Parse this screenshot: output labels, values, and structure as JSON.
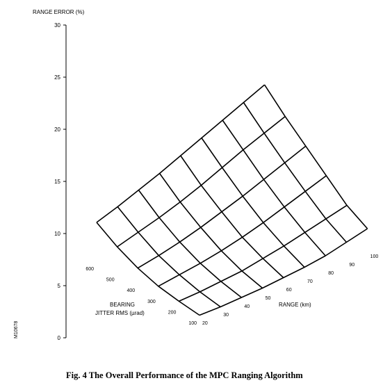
{
  "chart_data": {
    "type": "surface-mesh",
    "title": "",
    "zlabel": "RANGE ERROR (%)",
    "z_ticks": [
      "0",
      "5",
      "10",
      "15",
      "20",
      "25",
      "30"
    ],
    "zlim": [
      0,
      30
    ],
    "bearing_axis": {
      "label_line1": "BEARING",
      "label_line2": "JITTER RMS (µrad)",
      "values": [
        100,
        200,
        300,
        400,
        500,
        600
      ]
    },
    "range_axis": {
      "label": "RANGE (km)",
      "values": [
        20,
        30,
        40,
        50,
        60,
        70,
        80,
        90,
        100
      ]
    },
    "series": [
      {
        "name": "600",
        "values": [
          7.6,
          11.5,
          15.0,
          18.7,
          23.0,
          26.8
        ]
      },
      {
        "name": "500",
        "values": [
          6.2,
          9.6,
          12.9,
          16.2,
          19.8,
          23.5
        ]
      },
      {
        "name": "400",
        "values": [
          5.1,
          7.9,
          10.8,
          13.8,
          17.0,
          20.3
        ]
      },
      {
        "name": "300",
        "values": [
          4.1,
          6.2,
          8.8,
          11.4,
          14.1,
          17.0
        ]
      },
      {
        "name": "200",
        "values": [
          3.0,
          4.7,
          6.8,
          9.1,
          11.3,
          13.8
        ]
      },
      {
        "name": "100",
        "values": [
          2.0,
          3.2,
          5.0,
          6.8,
          8.6,
          10.6
        ]
      },
      {
        "name": "90",
        "values": [
          1.5,
          2.7,
          4.3,
          6.0,
          7.8,
          9.7
        ]
      },
      {
        "name": "80",
        "values": [
          1.0,
          2.2,
          3.6,
          5.2,
          7.0,
          8.8
        ]
      },
      {
        "name": "70",
        "values": [
          0.7,
          1.7,
          2.9,
          4.4,
          6.1,
          7.9
        ]
      },
      {
        "name": "60",
        "values": [
          0.5,
          1.3,
          2.3,
          3.7,
          5.2,
          7.0
        ]
      },
      {
        "name": "50",
        "values": [
          0.3,
          0.9,
          1.8,
          3.0,
          4.4,
          6.1
        ]
      },
      {
        "name": "40",
        "values": [
          0.2,
          0.7,
          1.4,
          2.4,
          3.7,
          5.3
        ]
      },
      {
        "name": "30",
        "values": [
          0.1,
          0.5,
          1.1,
          1.9,
          3.1,
          4.5
        ]
      },
      {
        "name": "20",
        "values": [
          0.1,
          0.4,
          0.8,
          1.5,
          2.5,
          3.8
        ]
      }
    ],
    "grid": false,
    "legend": "none"
  },
  "side_id": "M10678",
  "caption": "Fig. 4   The Overall Performance of the MPC Ranging Algorithm"
}
